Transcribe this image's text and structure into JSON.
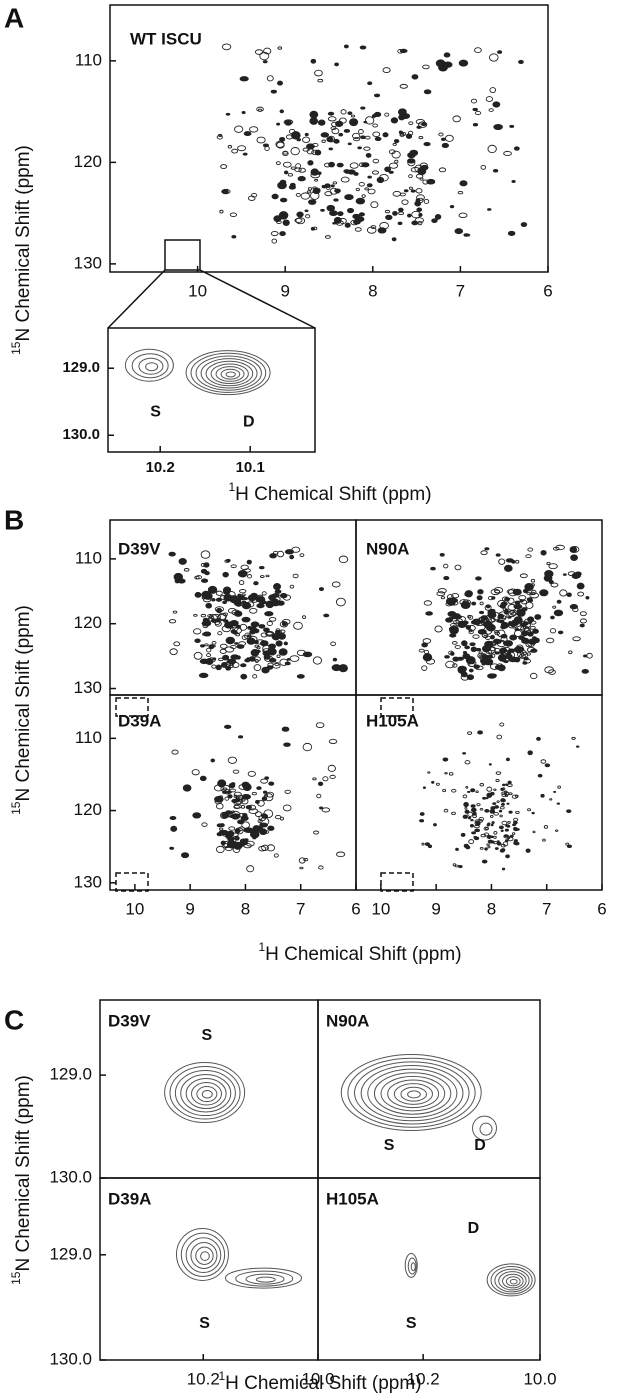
{
  "panels": [
    {
      "label": "A",
      "ylabel": {
        "sup": "15",
        "text": "N Chemical Shift (ppm)"
      },
      "xlabel": {
        "sup": "1",
        "text": "H Chemical Shift (ppm)"
      },
      "plots": [
        {
          "name": "WT ISCU",
          "xlim": [
            11,
            6
          ],
          "ylim": [
            104.5,
            130.8
          ],
          "xticks": [
            10,
            9,
            8,
            7,
            6
          ],
          "yticks": [
            110,
            120,
            130
          ],
          "annotations": []
        },
        {
          "xlim": [
            10.258,
            10.028
          ],
          "ylim": [
            128.4,
            130.25
          ],
          "xticks": [
            10.2,
            10.1
          ],
          "yticks": [
            {
              "value": 129,
              "label": "129.0"
            },
            {
              "value": 130,
              "label": "130.0"
            }
          ],
          "annotations": [
            "S",
            "D"
          ]
        }
      ]
    },
    {
      "label": "B",
      "ylabel": {
        "sup": "15",
        "text": "N Chemical Shift (ppm)"
      },
      "xlabel": {
        "sup": "1",
        "text": "H Chemical Shift (ppm)"
      },
      "plots": [
        {
          "name": "D39V",
          "xlim": [
            10.45,
            6
          ],
          "ylim": [
            104,
            131
          ],
          "xticks": [],
          "yticks": [
            110,
            120,
            130
          ],
          "annotations": []
        },
        {
          "name": "N90A",
          "xlim": [
            10.45,
            6
          ],
          "ylim": [
            104,
            131
          ],
          "xticks": [],
          "yticks": [],
          "annotations": []
        },
        {
          "name": "D39A",
          "xlim": [
            10.45,
            6
          ],
          "ylim": [
            104,
            131
          ],
          "xticks": [
            10,
            9,
            8,
            7,
            6
          ],
          "yticks": [
            110,
            120,
            130
          ],
          "annotations": []
        },
        {
          "name": "H105A",
          "xlim": [
            10.45,
            6
          ],
          "ylim": [
            104,
            131
          ],
          "xticks": [
            10,
            9,
            8,
            7,
            6
          ],
          "yticks": [],
          "annotations": []
        }
      ]
    },
    {
      "label": "C",
      "ylabel": {
        "sup": "15",
        "text": "N Chemical Shift (ppm)"
      },
      "xlabel": {
        "sup": "1",
        "text": "H Chemical Shift (ppm)"
      },
      "plots": [
        {
          "name": "D39V",
          "xlim": [
            10.38,
            10.0
          ],
          "ylim": [
            128.27,
            130.0
          ],
          "xticks": [],
          "yticks": [
            {
              "value": 129,
              "label": "129.0"
            },
            {
              "value": 130,
              "label": "130.0"
            }
          ],
          "annotations": [
            "S"
          ]
        },
        {
          "name": "N90A",
          "xlim": [
            10.38,
            10.0
          ],
          "ylim": [
            128.27,
            130.0
          ],
          "xticks": [],
          "yticks": [],
          "annotations": [
            "S",
            "D"
          ]
        },
        {
          "name": "D39A",
          "xlim": [
            10.38,
            10.0
          ],
          "ylim": [
            128.27,
            130.0
          ],
          "xticks": [
            10.2,
            {
              "value": 10,
              "label": "10.0"
            }
          ],
          "yticks": [
            {
              "value": 129,
              "label": "129.0"
            },
            {
              "value": 130,
              "label": "130.0"
            }
          ],
          "annotations": [
            "S"
          ]
        },
        {
          "name": "H105A",
          "xlim": [
            10.38,
            10.0
          ],
          "ylim": [
            128.27,
            130.0
          ],
          "xticks": [
            10.2,
            {
              "value": 10,
              "label": "10.0"
            }
          ],
          "yticks": [],
          "annotations": [
            "D",
            "S"
          ]
        }
      ]
    }
  ]
}
